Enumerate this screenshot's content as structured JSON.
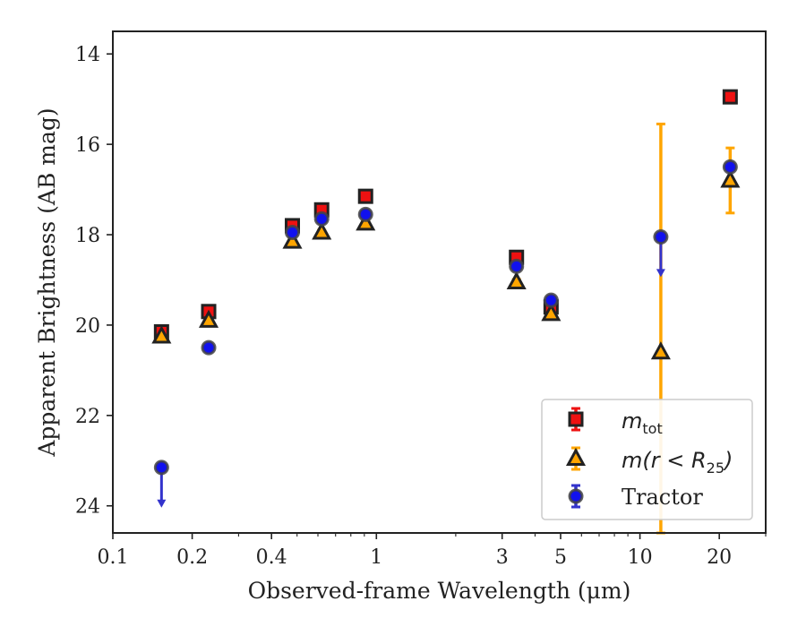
{
  "chart_data": {
    "type": "scatter",
    "xlabel": "Observed-frame Wavelength (μm)",
    "ylabel": "Apparent Brightness (AB mag)",
    "xscale": "log",
    "xlim": [
      0.1,
      30
    ],
    "ylim": [
      24.6,
      13.5
    ],
    "y_inverted": true,
    "x_ticks": [
      0.1,
      0.2,
      0.4,
      1,
      3,
      5,
      10,
      20
    ],
    "x_tick_labels": [
      "0.1",
      "0.2",
      "0.4",
      "1",
      "3",
      "5",
      "10",
      "20"
    ],
    "y_ticks": [
      14,
      16,
      18,
      20,
      22,
      24
    ],
    "y_tick_labels": [
      "14",
      "16",
      "18",
      "20",
      "22",
      "24"
    ],
    "legend_position": "lower-right",
    "legend": [
      {
        "label_main": "m",
        "label_sub": "tot",
        "marker": "square"
      },
      {
        "label_main": "m(r < R",
        "label_sub": "25",
        "label_tail": ")",
        "marker": "triangle"
      },
      {
        "label_main": "Tractor",
        "marker": "circle"
      }
    ],
    "series": [
      {
        "marker": "square",
        "face_color": "#ee1111",
        "edge_color": "#222222",
        "error_color": "#ee1111",
        "points": [
          {
            "x": 0.153,
            "y": 20.15,
            "yerr": 0.08
          },
          {
            "x": 0.231,
            "y": 19.7,
            "yerr": 0.06
          },
          {
            "x": 0.48,
            "y": 17.8,
            "yerr": 0.05
          },
          {
            "x": 0.62,
            "y": 17.45,
            "yerr": 0.05
          },
          {
            "x": 0.91,
            "y": 17.15,
            "yerr": 0.04
          },
          {
            "x": 3.4,
            "y": 18.5,
            "yerr": 0.04
          },
          {
            "x": 4.6,
            "y": 19.6,
            "yerr": 0.05
          },
          {
            "x": 22.0,
            "y": 14.95,
            "yerr": 0.03
          }
        ]
      },
      {
        "marker": "triangle",
        "face_color": "#ffa500",
        "edge_color": "#222222",
        "error_color": "#ffa500",
        "points": [
          {
            "x": 0.153,
            "y": 20.25,
            "yerr": 0.06
          },
          {
            "x": 0.231,
            "y": 19.9,
            "yerr": 0.05
          },
          {
            "x": 0.48,
            "y": 18.15,
            "yerr": 0.05
          },
          {
            "x": 0.62,
            "y": 17.95,
            "yerr": 0.05
          },
          {
            "x": 0.91,
            "y": 17.75,
            "yerr": 0.05
          },
          {
            "x": 3.4,
            "y": 19.05,
            "yerr": 0.06
          },
          {
            "x": 4.6,
            "y": 19.75,
            "yerr": 0.06
          },
          {
            "x": 12.0,
            "y": 20.6,
            "yerr_low": 5.05,
            "yerr_high": 5.1
          },
          {
            "x": 22.0,
            "y": 16.8,
            "yerr": 0.72
          }
        ]
      },
      {
        "marker": "circle",
        "face_color": "#1111ee",
        "edge_color": "#444444",
        "error_color": "#3333cc",
        "points": [
          {
            "x": 0.153,
            "y": 23.15,
            "upper_limit": true
          },
          {
            "x": 0.231,
            "y": 20.5
          },
          {
            "x": 0.48,
            "y": 17.95
          },
          {
            "x": 0.62,
            "y": 17.65
          },
          {
            "x": 0.91,
            "y": 17.55
          },
          {
            "x": 3.4,
            "y": 18.7
          },
          {
            "x": 4.6,
            "y": 19.45
          },
          {
            "x": 12.0,
            "y": 18.05,
            "upper_limit": true
          },
          {
            "x": 22.0,
            "y": 16.5
          }
        ]
      }
    ]
  }
}
